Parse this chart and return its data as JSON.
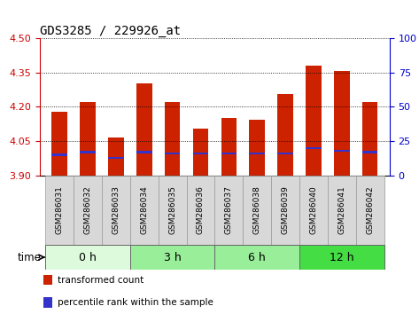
{
  "title": "GDS3285 / 229926_at",
  "samples": [
    "GSM286031",
    "GSM286032",
    "GSM286033",
    "GSM286034",
    "GSM286035",
    "GSM286036",
    "GSM286037",
    "GSM286038",
    "GSM286039",
    "GSM286040",
    "GSM286041",
    "GSM286042"
  ],
  "transformed_counts": [
    4.18,
    4.22,
    4.065,
    4.3,
    4.22,
    4.105,
    4.15,
    4.145,
    4.255,
    4.38,
    4.355,
    4.22
  ],
  "percentile_values": [
    15,
    17,
    13,
    17,
    16,
    16,
    16,
    16,
    16,
    20,
    18,
    17
  ],
  "ylim_left": [
    3.9,
    4.5
  ],
  "ylim_right": [
    0,
    100
  ],
  "yticks_left": [
    3.9,
    4.05,
    4.2,
    4.35,
    4.5
  ],
  "yticks_right": [
    0,
    25,
    50,
    75,
    100
  ],
  "bar_color": "#CC2200",
  "percentile_color": "#3333CC",
  "sample_box_color": "#D8D8D8",
  "sample_box_edge": "#999999",
  "groups": [
    {
      "label": "0 h",
      "start": 0,
      "end": 3,
      "color": "#DDFADD"
    },
    {
      "label": "3 h",
      "start": 3,
      "end": 6,
      "color": "#99EE99"
    },
    {
      "label": "6 h",
      "start": 6,
      "end": 9,
      "color": "#99EE99"
    },
    {
      "label": "12 h",
      "start": 9,
      "end": 12,
      "color": "#44DD44"
    }
  ],
  "base_value": 3.9,
  "bar_width": 0.55,
  "legend_items": [
    {
      "label": "transformed count",
      "color": "#CC2200"
    },
    {
      "label": "percentile rank within the sample",
      "color": "#3333CC"
    }
  ],
  "left_color": "#CC0000",
  "right_color": "#0000CC",
  "grid_linestyle": ":",
  "grid_color": "#000000",
  "grid_linewidth": 0.6
}
